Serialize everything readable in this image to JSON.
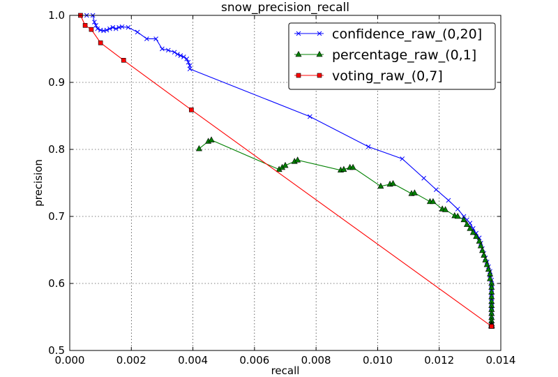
{
  "chart_data": {
    "type": "line",
    "title": "snow_precision_recall",
    "xlabel": "recall",
    "ylabel": "precision",
    "xlim": [
      0.0,
      0.014
    ],
    "ylim": [
      0.5,
      1.0
    ],
    "x_ticks": [
      "0.000",
      "0.002",
      "0.004",
      "0.006",
      "0.008",
      "0.010",
      "0.012",
      "0.014"
    ],
    "y_ticks": [
      "0.5",
      "0.6",
      "0.7",
      "0.8",
      "0.9",
      "1.0"
    ],
    "grid": true,
    "legend_position": "top-right",
    "series": [
      {
        "name": "confidence_raw_(0,20]",
        "color": "#0000ff",
        "marker": "x",
        "x": [
          0.00035,
          0.00055,
          0.00075,
          0.0008,
          0.00085,
          0.0009,
          0.001,
          0.0011,
          0.0012,
          0.0013,
          0.0014,
          0.0015,
          0.0016,
          0.0017,
          0.0019,
          0.0022,
          0.0025,
          0.0028,
          0.003,
          0.0032,
          0.0034,
          0.0035,
          0.0036,
          0.0037,
          0.0038,
          0.00385,
          0.0039,
          0.0039,
          0.0078,
          0.0097,
          0.0108,
          0.0115,
          0.0119,
          0.0123,
          0.0126,
          0.0128,
          0.0129,
          0.013,
          0.0131,
          0.0132,
          0.0133,
          0.01335,
          0.0134,
          0.01345,
          0.0135,
          0.01355,
          0.0136,
          0.01365,
          0.01365,
          0.0137,
          0.0137,
          0.0137,
          0.0137,
          0.0137,
          0.0137,
          0.0137,
          0.0137,
          0.0137,
          0.0137,
          0.0137,
          0.0137,
          0.0137
        ],
        "y": [
          1.0,
          1.0,
          1.0,
          0.99,
          0.985,
          0.98,
          0.978,
          0.977,
          0.978,
          0.98,
          0.982,
          0.98,
          0.982,
          0.983,
          0.982,
          0.975,
          0.965,
          0.965,
          0.95,
          0.948,
          0.945,
          0.942,
          0.94,
          0.938,
          0.935,
          0.93,
          0.925,
          0.92,
          0.849,
          0.804,
          0.786,
          0.757,
          0.74,
          0.724,
          0.711,
          0.7,
          0.695,
          0.69,
          0.682,
          0.675,
          0.668,
          0.66,
          0.652,
          0.645,
          0.638,
          0.632,
          0.625,
          0.618,
          0.612,
          0.605,
          0.598,
          0.592,
          0.585,
          0.578,
          0.572,
          0.565,
          0.558,
          0.552,
          0.546,
          0.541,
          0.538,
          0.537
        ]
      },
      {
        "name": "percentage_raw_(0,1]",
        "color": "#008000",
        "marker": "triangle",
        "x": [
          0.0042,
          0.0045,
          0.0046,
          0.0068,
          0.0069,
          0.007,
          0.0073,
          0.0074,
          0.0088,
          0.0089,
          0.0091,
          0.0092,
          0.0101,
          0.0104,
          0.0105,
          0.0111,
          0.0112,
          0.0117,
          0.0118,
          0.0121,
          0.0122,
          0.0125,
          0.0126,
          0.0128,
          0.0129,
          0.013,
          0.0131,
          0.0132,
          0.0133,
          0.01335,
          0.0134,
          0.01345,
          0.0135,
          0.01355,
          0.0136,
          0.01365,
          0.01365,
          0.0137,
          0.0137,
          0.0137,
          0.0137,
          0.0137,
          0.0137,
          0.0137,
          0.0137,
          0.0137,
          0.0137,
          0.0137,
          0.0137,
          0.0137,
          0.0137
        ],
        "y": [
          0.801,
          0.812,
          0.814,
          0.77,
          0.773,
          0.776,
          0.782,
          0.784,
          0.769,
          0.77,
          0.773,
          0.773,
          0.745,
          0.748,
          0.749,
          0.734,
          0.735,
          0.722,
          0.722,
          0.711,
          0.71,
          0.701,
          0.7,
          0.695,
          0.688,
          0.682,
          0.676,
          0.67,
          0.663,
          0.656,
          0.649,
          0.642,
          0.635,
          0.628,
          0.621,
          0.614,
          0.607,
          0.6,
          0.594,
          0.587,
          0.58,
          0.573,
          0.567,
          0.561,
          0.555,
          0.549,
          0.544,
          0.54,
          0.538,
          0.537,
          0.536
        ]
      },
      {
        "name": "voting_raw_(0,7]",
        "color": "#ff0000",
        "marker": "square",
        "x": [
          0.00035,
          0.0005,
          0.0007,
          0.001,
          0.00175,
          0.00395,
          0.0137
        ],
        "y": [
          1.0,
          0.985,
          0.979,
          0.959,
          0.933,
          0.859,
          0.536
        ]
      }
    ]
  }
}
